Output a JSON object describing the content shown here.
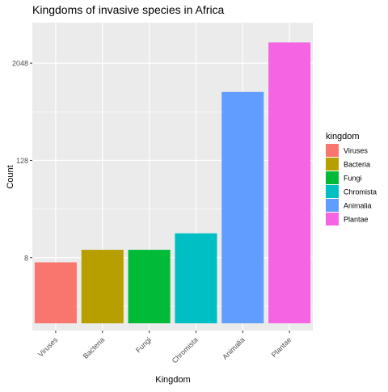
{
  "chart_data": {
    "type": "bar",
    "title": "Kingdoms of invasive species in Africa",
    "xlabel": "Kingdom",
    "ylabel": "Count",
    "y_scale": "log2",
    "categories": [
      "Viruses",
      "Bacteria",
      "Fungi",
      "Chromista",
      "Animalia",
      "Plantae"
    ],
    "values": [
      7,
      10,
      10,
      16,
      900,
      3700
    ],
    "colors": [
      "#F8766D",
      "#B79F00",
      "#00BA38",
      "#00BFC4",
      "#619CFF",
      "#F564E3"
    ],
    "y_ticks": [
      8,
      128,
      2048
    ],
    "y_tick_labels": [
      "8",
      "128",
      "2048"
    ],
    "ylim": [
      1,
      6500
    ],
    "legend": {
      "title": "kingdom",
      "placement": "right",
      "entries": [
        "Viruses",
        "Bacteria",
        "Fungi",
        "Chromista",
        "Animalia",
        "Plantae"
      ]
    },
    "grid": true,
    "panel_background": "#EBEBEB"
  }
}
